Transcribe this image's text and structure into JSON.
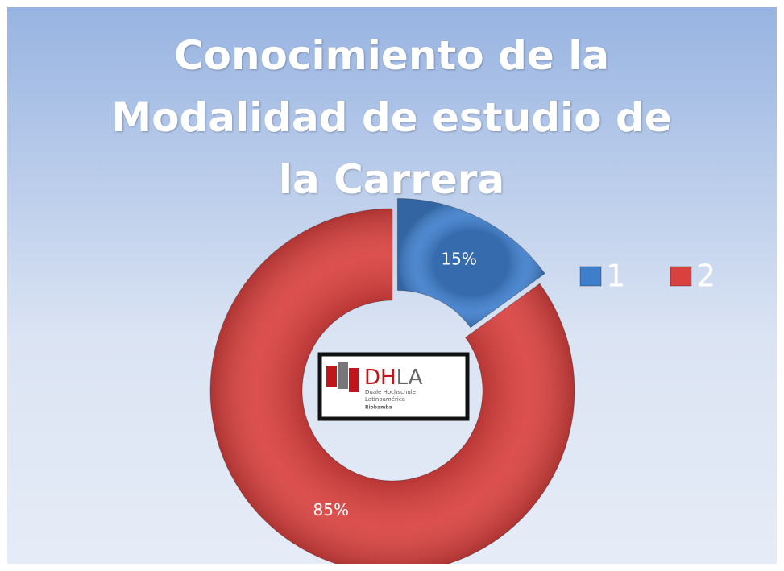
{
  "chart_data": {
    "type": "donut",
    "title": "Conocimiento de la Modalidad de estudio de la Carrera",
    "categories": [
      "1",
      "2"
    ],
    "values": [
      15,
      85
    ],
    "value_labels": [
      "15%",
      "85%"
    ],
    "colors": [
      "#3f7ecb",
      "#d9413f"
    ],
    "legend": "right"
  },
  "logo": {
    "mark": "DH",
    "mark2": "LA",
    "line1": "Duale Hochschule",
    "line2": "Latinoamérica",
    "line3": "Riobamba"
  }
}
